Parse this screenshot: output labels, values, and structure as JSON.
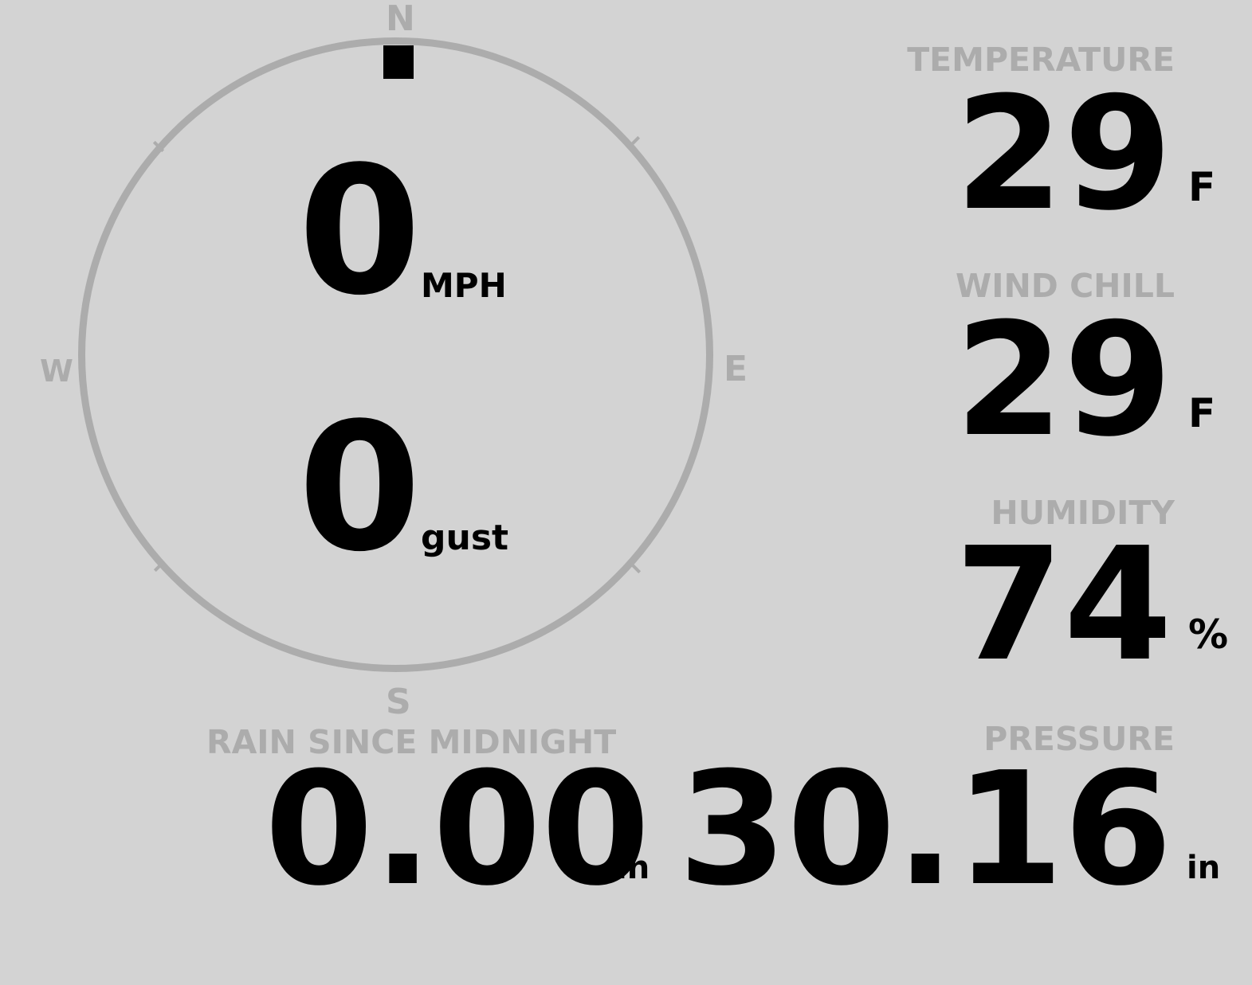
{
  "wind": {
    "compass": {
      "north": "N",
      "south": "S",
      "east": "E",
      "west": "W",
      "direction_degrees": 0,
      "ring_color": "#acacac",
      "needle_color": "#000000"
    },
    "speed": "0",
    "speed_unit": "MPH",
    "gust": "0",
    "gust_unit": "gust"
  },
  "temperature": {
    "label": "TEMPERATURE",
    "value": "29",
    "unit": "F"
  },
  "wind_chill": {
    "label": "WIND CHILL",
    "value": "29",
    "unit": "F"
  },
  "humidity": {
    "label": "HUMIDITY",
    "value": "74",
    "unit": "%"
  },
  "rain": {
    "label": "RAIN SINCE MIDNIGHT",
    "value": "0.00",
    "unit": "in"
  },
  "pressure": {
    "label": "PRESSURE",
    "value": "30.16",
    "unit": "in"
  },
  "colors": {
    "background": "#d3d3d3",
    "label": "#acacac",
    "value": "#000000"
  }
}
